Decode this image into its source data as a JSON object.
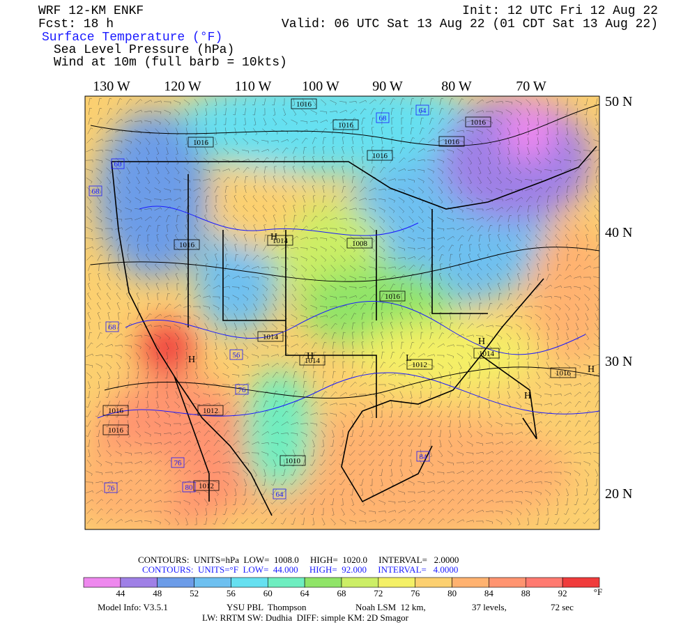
{
  "header": {
    "model": "WRF 12-KM ENKF",
    "forecast": "Fcst:   18 h",
    "init": "Init: 12 UTC Fri 12 Aug 22",
    "valid": "Valid: 06 UTC Sat 13 Aug 22 (01 CDT Sat 13 Aug 22)",
    "fields": [
      "Surface Temperature (°F)",
      "Sea Level Pressure (hPa)",
      "Wind at 10m (full barb = 10kts)"
    ]
  },
  "map": {
    "longitude_labels": [
      "130 W",
      "120 W",
      "110 W",
      "100 W",
      "90 W",
      "80 W",
      "70 W"
    ],
    "latitude_labels": [
      "50 N",
      "40 N",
      "30 N",
      "20 N"
    ],
    "contour_labels": [
      "1016",
      "1016",
      "1016",
      "1016",
      "1016",
      "1016",
      "1014",
      "1014",
      "1016",
      "1016",
      "1008",
      "1014",
      "1014",
      "1012",
      "1016",
      "1016",
      "1012",
      "1010",
      "1016",
      "1012",
      "68",
      "64",
      "60",
      "68",
      "68",
      "76",
      "84",
      "80",
      "76",
      "76",
      "56",
      "64"
    ],
    "center_labels": [
      "H",
      "H",
      "H",
      "L",
      "H",
      "H",
      "H"
    ]
  },
  "legend": {
    "contours_pressure": "CONTOURS:  UNITS=hPa  LOW=  1008.0     HIGH=  1020.0     INTERVAL=   2.0000",
    "contours_temperature": "CONTOURS:  UNITS=°F  LOW=  44.000     HIGH=  92.000     INTERVAL=   4.0000",
    "colors": [
      "#ee88ee",
      "#9f80e6",
      "#6c9ce8",
      "#6ec0f0",
      "#66e0f0",
      "#6eeec0",
      "#90e468",
      "#ccee66",
      "#f4f066",
      "#fcd070",
      "#ffb270",
      "#ff9470",
      "#ff7a70",
      "#f03c3c"
    ],
    "labels": [
      "44",
      "48",
      "52",
      "56",
      "60",
      "64",
      "68",
      "72",
      "76",
      "80",
      "84",
      "88",
      "92"
    ],
    "unit": "°F"
  },
  "footer": {
    "line1": [
      "Model Info: V3.5.1",
      "YSU PBL  Thompson",
      "Noah LSM  12 km,",
      "37 levels,",
      "72 sec"
    ],
    "line2": "LW: RRTM SW: Dudhia  DIFF: simple KM: 2D Smagor"
  }
}
